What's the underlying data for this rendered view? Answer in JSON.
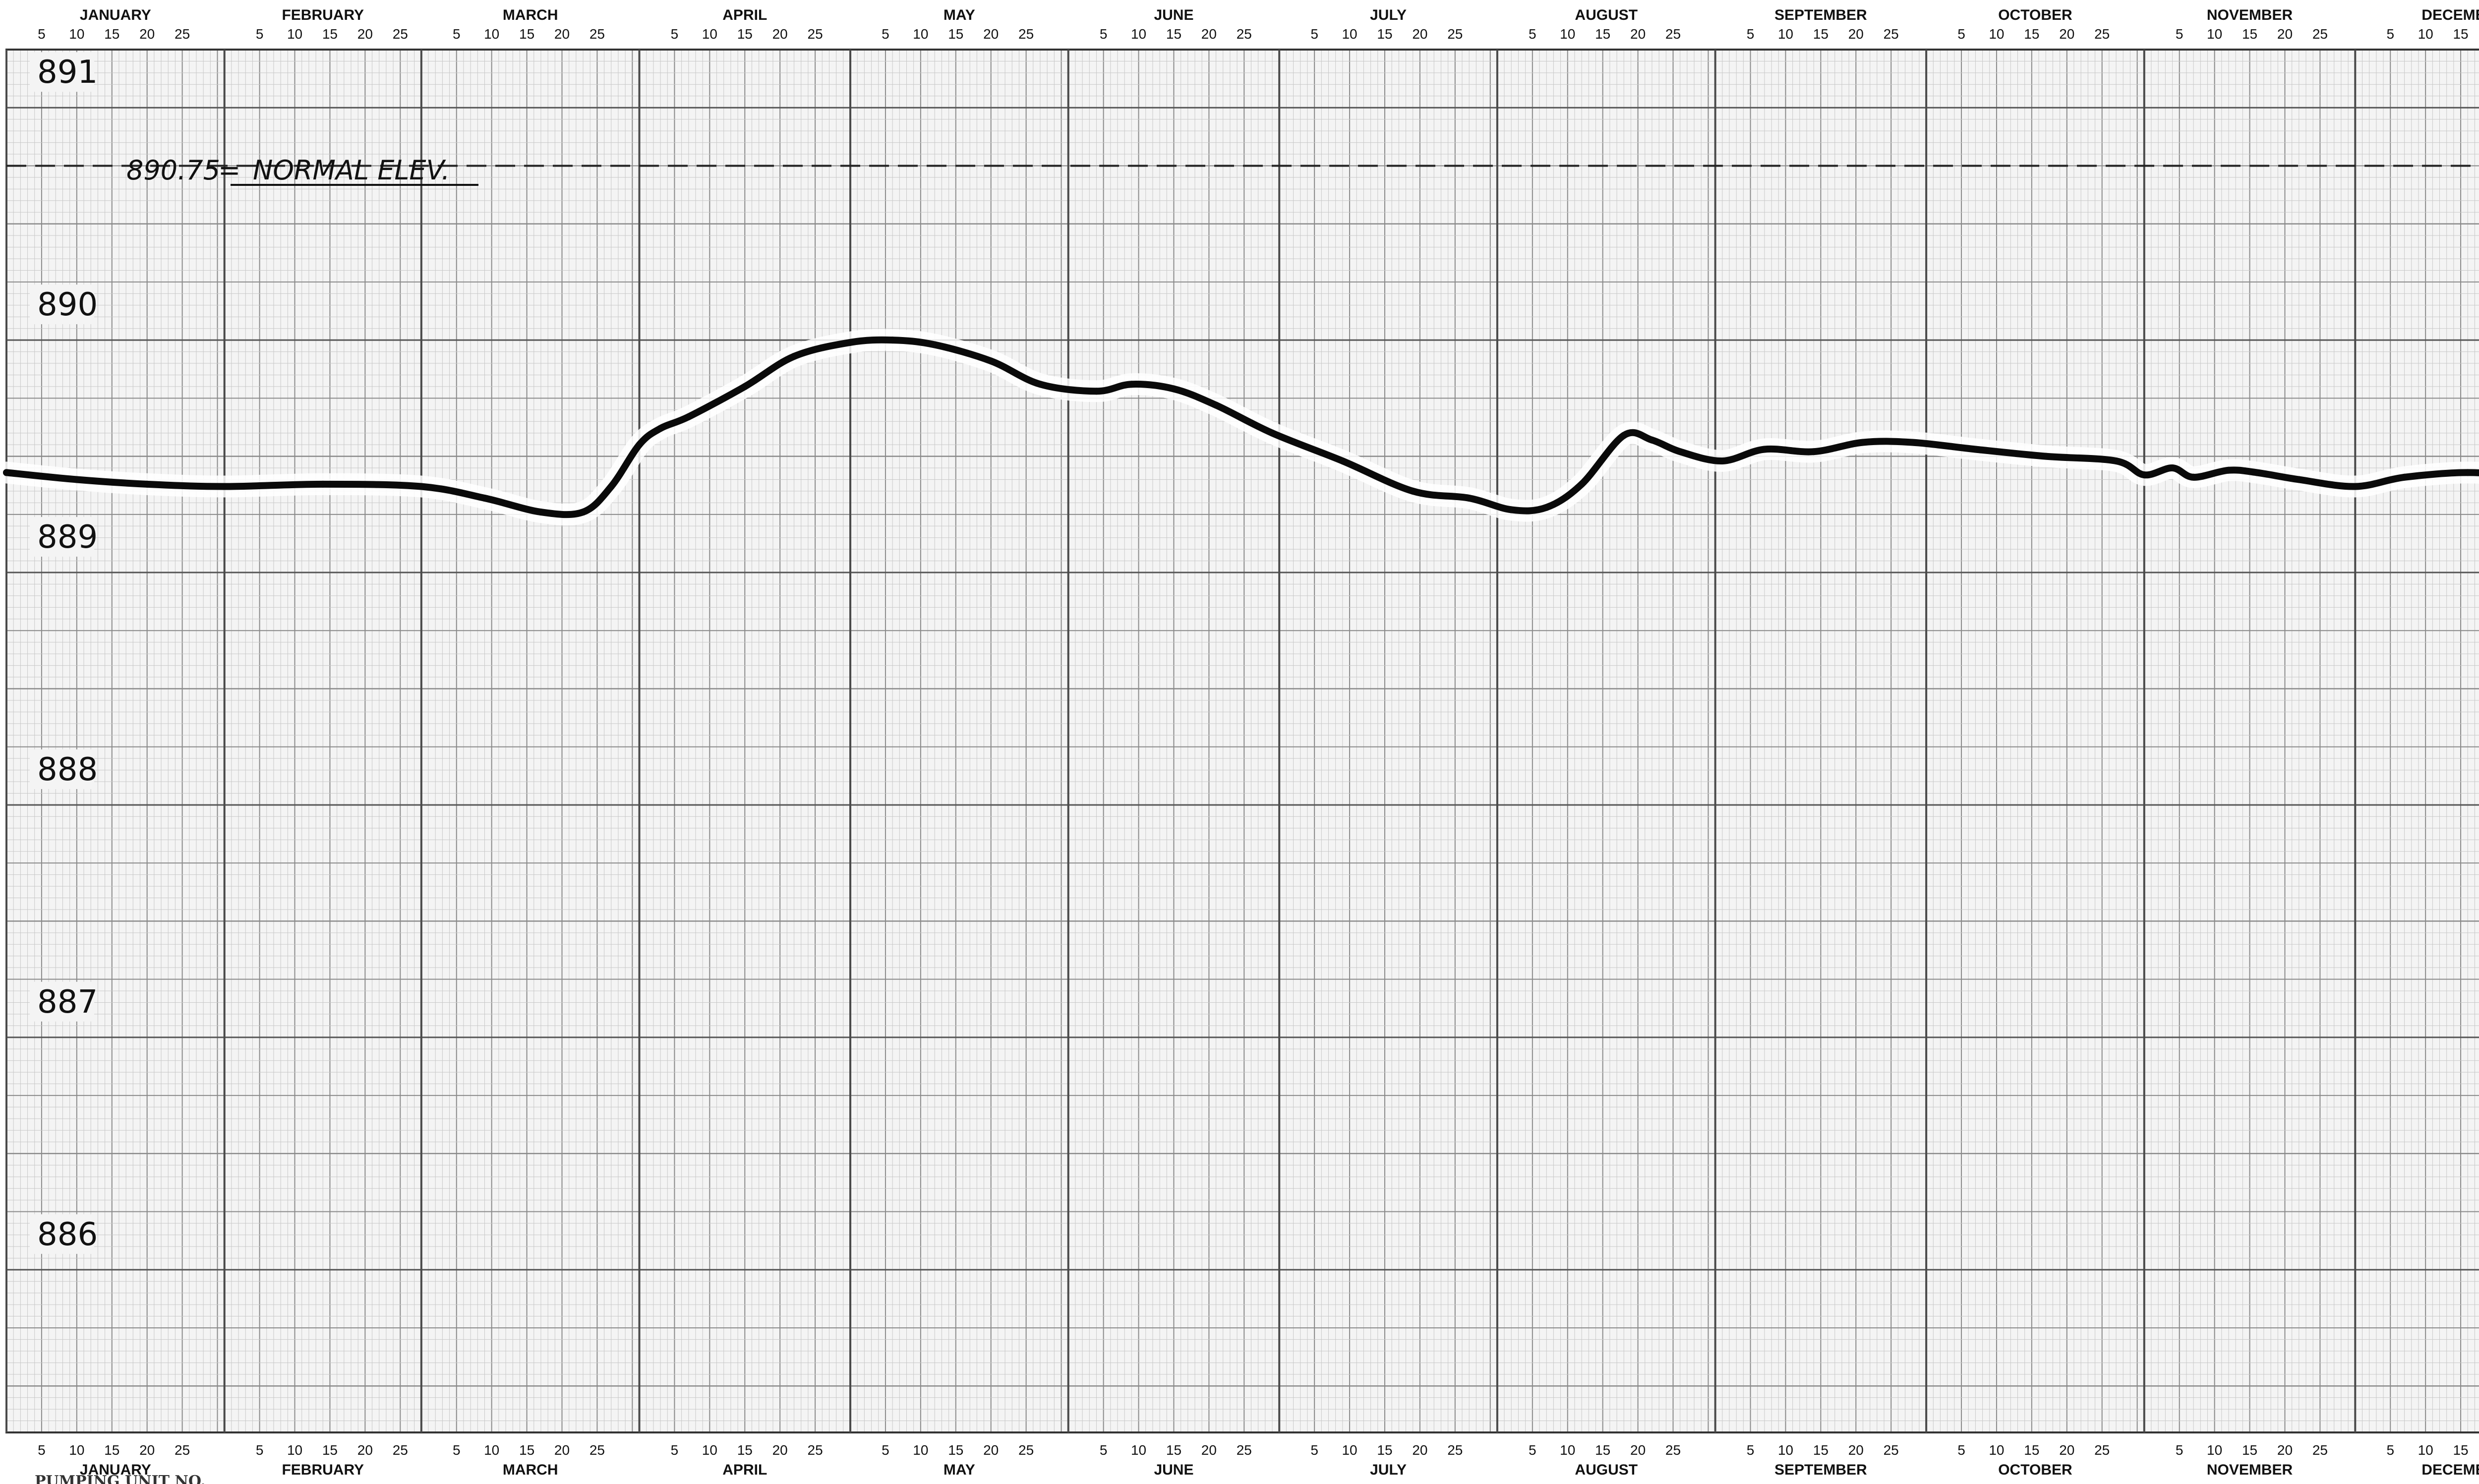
{
  "chart_data": {
    "type": "line",
    "title": "",
    "xlabel": "",
    "ylabel": "",
    "months": [
      "JANUARY",
      "FEBRUARY",
      "MARCH",
      "APRIL",
      "MAY",
      "JUNE",
      "JULY",
      "AUGUST",
      "SEPTEMBER",
      "OCTOBER",
      "NOVEMBER",
      "DECEMBER"
    ],
    "day_ticks": [
      "5",
      "10",
      "15",
      "20",
      "25"
    ],
    "y_ticks": [
      891,
      890,
      889,
      888,
      887,
      886
    ],
    "ylim": [
      885.3,
      891.25
    ],
    "xlim": [
      0,
      365
    ],
    "grid": true,
    "reference_line": {
      "value": 890.75,
      "label_value": "890.75",
      "label_separator": "=",
      "label_text": "NORMAL ELEV."
    },
    "series": [
      {
        "x": [
          0,
          10,
          20,
          31,
          45,
          59,
          68,
          76,
          82,
          86,
          90,
          93,
          97,
          105,
          112,
          120,
          126,
          132,
          140,
          147,
          155,
          160,
          166,
          172,
          180,
          190,
          200,
          208,
          214,
          219,
          224,
          230,
          234,
          238,
          244,
          250,
          257,
          264,
          271,
          280,
          290,
          300,
          304,
          308,
          311,
          316,
          320,
          326,
          334,
          341,
          350,
          357,
          365
        ],
        "y": [
          889.43,
          889.4,
          889.38,
          889.37,
          889.38,
          889.37,
          889.32,
          889.26,
          889.26,
          889.37,
          889.55,
          889.62,
          889.67,
          889.8,
          889.93,
          889.99,
          890.0,
          889.98,
          889.91,
          889.81,
          889.78,
          889.81,
          889.79,
          889.72,
          889.6,
          889.48,
          889.35,
          889.32,
          889.27,
          889.28,
          889.38,
          889.59,
          889.57,
          889.52,
          889.48,
          889.53,
          889.52,
          889.56,
          889.56,
          889.53,
          889.5,
          889.48,
          889.42,
          889.45,
          889.41,
          889.44,
          889.43,
          889.4,
          889.37,
          889.41,
          889.43,
          889.41,
          889.35
        ]
      }
    ]
  },
  "footer": {
    "left_text": "PUMPING UNIT NO."
  },
  "colors": {
    "line": "#0a0a0a",
    "grid_minor": "#c8c8c8",
    "grid_major": "#8a8a8a",
    "month_separator": "#4a4a4a",
    "paper": "#f4f4f4"
  }
}
